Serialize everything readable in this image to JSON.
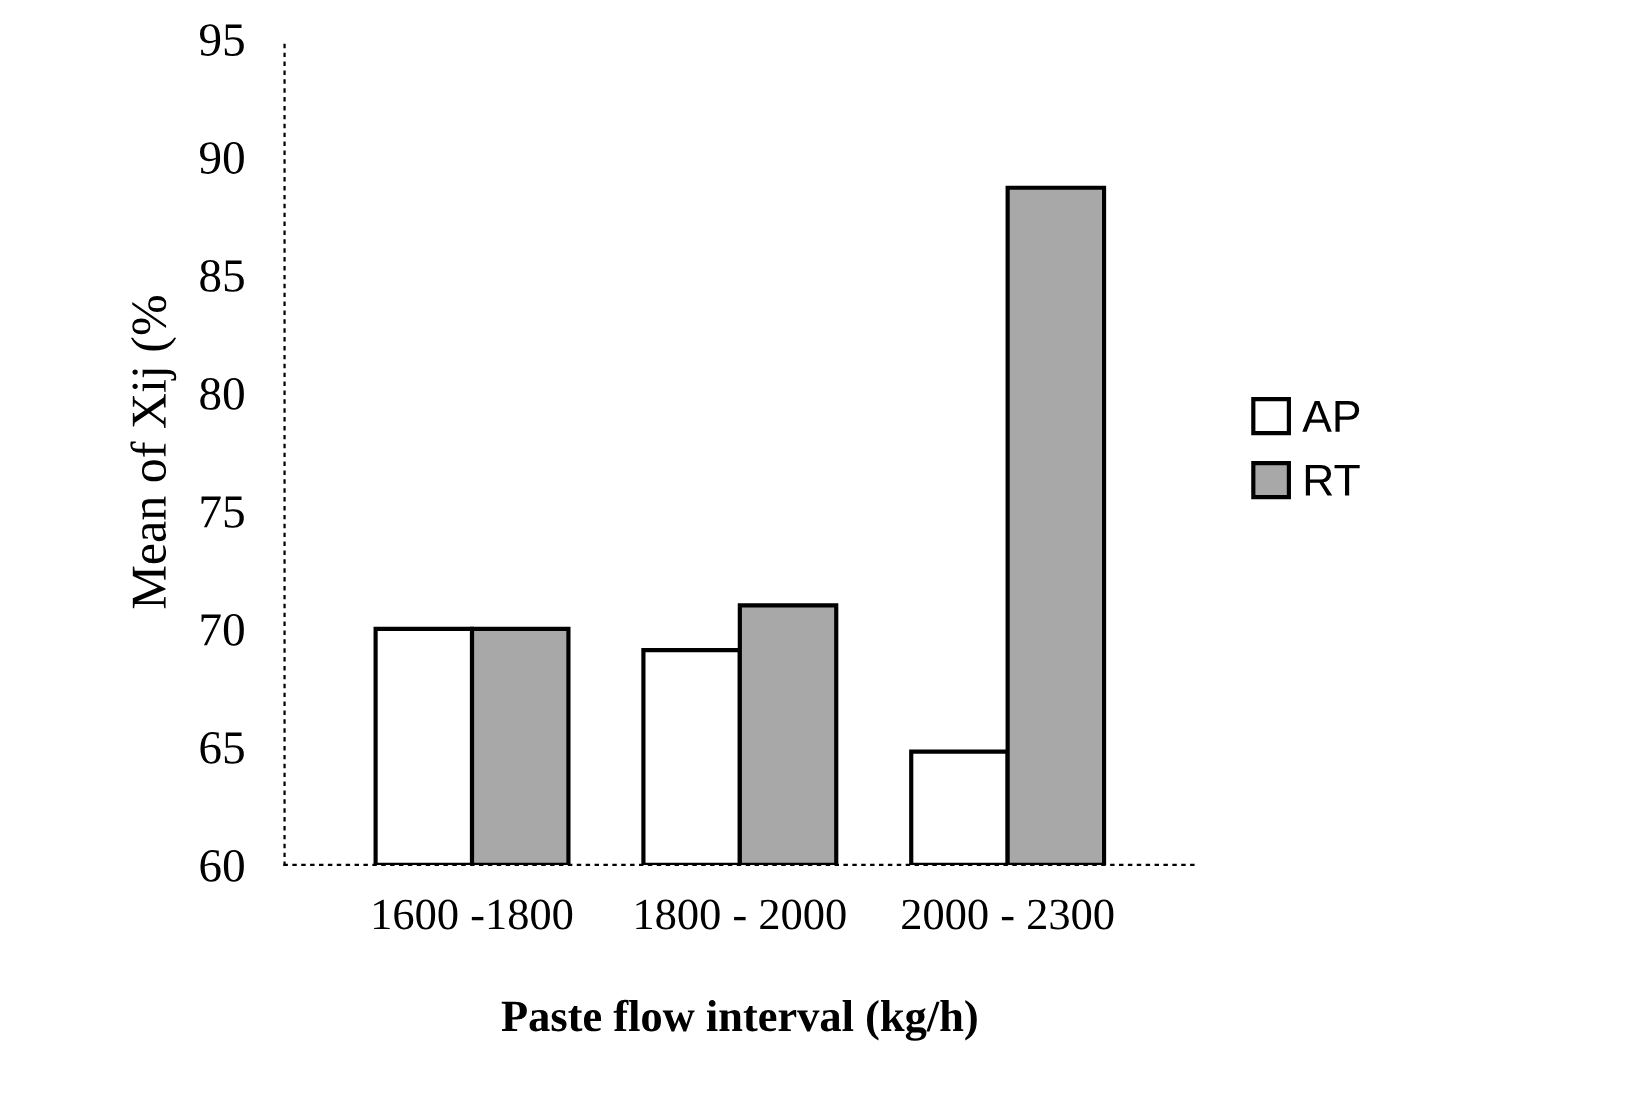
{
  "chart_data": {
    "type": "bar",
    "xlabel": "Paste flow interval (kg/h)",
    "ylabel": "Mean of Xij (%",
    "categories": [
      "1600 -1800",
      "1800 - 2000",
      "2000 - 2300"
    ],
    "series": [
      {
        "name": "AP",
        "color": "#ffffff",
        "values": [
          70,
          69.1,
          64.8
        ]
      },
      {
        "name": "RT",
        "color": "#a8a8a8",
        "values": [
          70,
          71,
          88.7
        ]
      }
    ],
    "ylim": [
      60,
      95
    ],
    "yticks": [
      60,
      65,
      70,
      75,
      80,
      85,
      90,
      95
    ],
    "grid": false,
    "legend": "right"
  }
}
